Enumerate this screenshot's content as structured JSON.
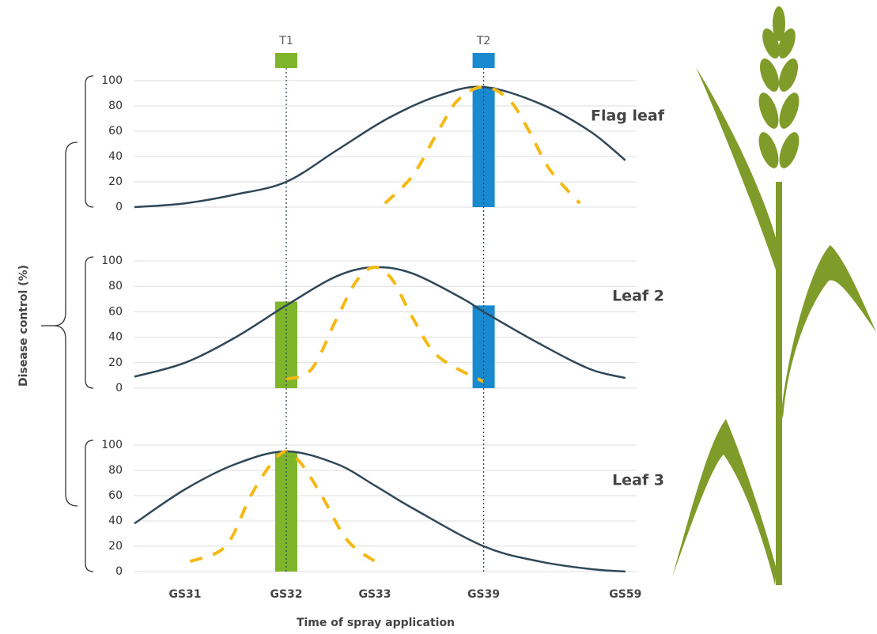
{
  "chart_data": [
    {
      "type": "line",
      "title": "Flag leaf",
      "ylim": [
        0,
        100
      ],
      "yticks": [
        0,
        20,
        40,
        60,
        80,
        100
      ],
      "grid": true,
      "series": [
        {
          "color": "#2f4858",
          "style": "solid",
          "x": [
            0,
            10,
            20,
            30,
            40,
            50,
            60,
            69,
            80,
            90,
            97
          ],
          "values": [
            0,
            3,
            10,
            20,
            45,
            70,
            88,
            95,
            82,
            60,
            37
          ]
        },
        {
          "color": "#f5b914",
          "style": "dashed",
          "x": [
            49.5,
            55,
            60,
            64,
            69,
            74,
            78,
            82,
            88
          ],
          "values": [
            3,
            25,
            60,
            85,
            95,
            85,
            60,
            30,
            3
          ]
        }
      ],
      "bars": [
        {
          "x": 69,
          "value": 95,
          "color": "#1a8ad0"
        }
      ]
    },
    {
      "type": "line",
      "title": "Leaf 2",
      "ylim": [
        0,
        100
      ],
      "yticks": [
        0,
        20,
        40,
        60,
        80,
        100
      ],
      "grid": true,
      "series": [
        {
          "color": "#2f4858",
          "style": "solid",
          "x": [
            0,
            10,
            20,
            30,
            40,
            47.5,
            55,
            65,
            69,
            80,
            90,
            97
          ],
          "values": [
            9,
            20,
            40,
            65,
            88,
            95,
            90,
            70,
            60,
            35,
            15,
            8
          ]
        },
        {
          "color": "#f5b914",
          "style": "dashed",
          "x": [
            30,
            35,
            40,
            44,
            47.5,
            51,
            55,
            60,
            69
          ],
          "values": [
            7,
            15,
            55,
            85,
            95,
            85,
            55,
            25,
            5
          ]
        }
      ],
      "bars": [
        {
          "x": 30,
          "value": 68,
          "color": "#7fb52b"
        },
        {
          "x": 69,
          "value": 65,
          "color": "#1a8ad0"
        }
      ]
    },
    {
      "type": "line",
      "title": "Leaf 3",
      "ylim": [
        0,
        100
      ],
      "yticks": [
        0,
        20,
        40,
        60,
        80,
        100
      ],
      "grid": true,
      "series": [
        {
          "color": "#2f4858",
          "style": "solid",
          "x": [
            0,
            10,
            20,
            30,
            40,
            47.5,
            55,
            69,
            80,
            90,
            97
          ],
          "values": [
            38,
            65,
            85,
            95,
            85,
            68,
            50,
            20,
            8,
            2,
            0
          ]
        },
        {
          "color": "#f5b914",
          "style": "dashed",
          "x": [
            11,
            18,
            23,
            27,
            30,
            33,
            37,
            42,
            47.5
          ],
          "values": [
            8,
            20,
            60,
            85,
            95,
            85,
            60,
            25,
            8
          ]
        }
      ],
      "bars": [
        {
          "x": 30,
          "value": 95,
          "color": "#7fb52b"
        }
      ]
    }
  ],
  "axes": {
    "ylabel": "Disease control (%)",
    "xlabel": "Time of spray application",
    "xlim": [
      0,
      100
    ],
    "xticks": [
      {
        "value": 10,
        "label": "GS31"
      },
      {
        "value": 30,
        "label": "GS32"
      },
      {
        "value": 47.5,
        "label": "GS33"
      },
      {
        "value": 69,
        "label": "GS39"
      },
      {
        "value": 97,
        "label": "GS59"
      }
    ],
    "treatments": [
      {
        "label": "T1",
        "x": 30,
        "color": "#7fb52b"
      },
      {
        "label": "T2",
        "x": 69,
        "color": "#1a8ad0"
      }
    ]
  }
}
